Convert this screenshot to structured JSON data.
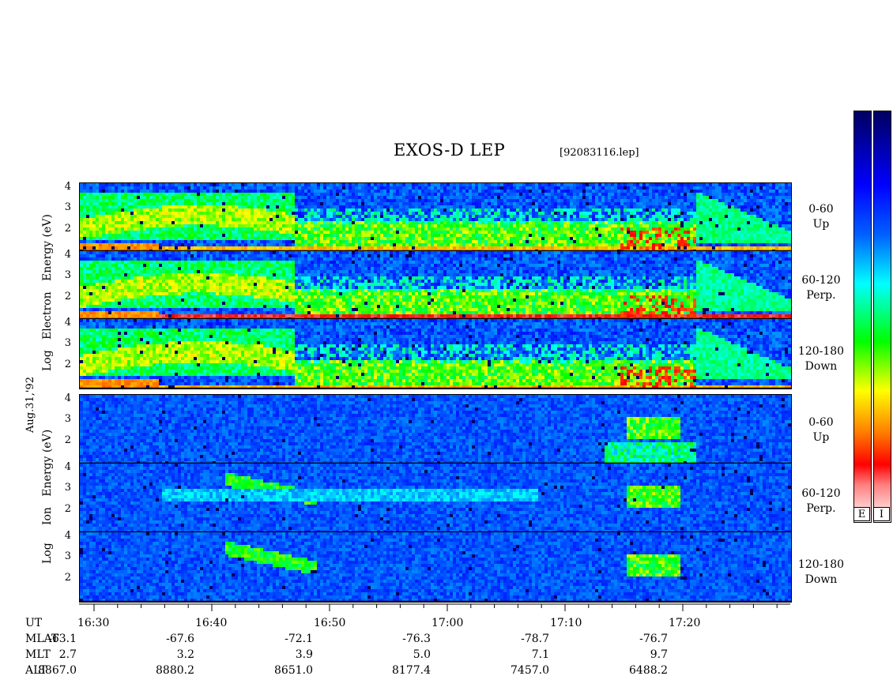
{
  "title": "EXOS-D LEP",
  "filename": "[92083116.lep]",
  "date_label": "Aug.31,'92",
  "electron_ylabel": [
    "Log",
    "Electron",
    "Energy",
    "(eV)"
  ],
  "ion_ylabel": [
    "Log",
    "Ion",
    "Energy",
    "(eV)"
  ],
  "panel_labels": [
    [
      "0-60",
      "Up"
    ],
    [
      "60-120",
      "Perp."
    ],
    [
      "120-180",
      "Down"
    ],
    [
      "0-60",
      "Up"
    ],
    [
      "60-120",
      "Perp."
    ],
    [
      "120-180",
      "Down"
    ]
  ],
  "colorbar_labels": [
    "E",
    "I"
  ],
  "y_ticks": [
    "4",
    "3",
    "2"
  ],
  "bottom_rows": {
    "names": [
      "UT",
      "MLAT",
      "MLT",
      "ALT"
    ],
    "UT": [
      "16:30",
      "16:40",
      "16:50",
      "17:00",
      "17:10",
      "17:20"
    ],
    "MLAT": [
      "-63.1",
      "-67.6",
      "-72.1",
      "-76.3",
      "-78.7",
      "-76.7"
    ],
    "MLT": [
      "2.7",
      "3.2",
      "3.9",
      "5.0",
      "7.1",
      "9.7"
    ],
    "ALT": [
      "8867.0",
      "8880.2",
      "8651.0",
      "8177.4",
      "7457.0",
      "6488.2"
    ]
  },
  "chart_data": {
    "type": "heatmap",
    "x_label": "UT",
    "x_ticks": [
      "16:30",
      "16:40",
      "16:50",
      "17:00",
      "17:10",
      "17:20"
    ],
    "y_axis": "Log Energy (eV)",
    "y_ticks": [
      2,
      3,
      4
    ],
    "panels": [
      {
        "species": "Electron",
        "pitch_angle": "0-60",
        "direction": "Up"
      },
      {
        "species": "Electron",
        "pitch_angle": "60-120",
        "direction": "Perp."
      },
      {
        "species": "Electron",
        "pitch_angle": "120-180",
        "direction": "Down"
      },
      {
        "species": "Ion",
        "pitch_angle": "0-60",
        "direction": "Up"
      },
      {
        "species": "Ion",
        "pitch_angle": "60-120",
        "direction": "Perp."
      },
      {
        "species": "Ion",
        "pitch_angle": "120-180",
        "direction": "Down"
      }
    ],
    "colorscale": [
      "#000060",
      "#0000ff",
      "#00ffff",
      "#00ff00",
      "#ffff00",
      "#ff8000",
      "#ff0000",
      "#ffffff"
    ]
  }
}
